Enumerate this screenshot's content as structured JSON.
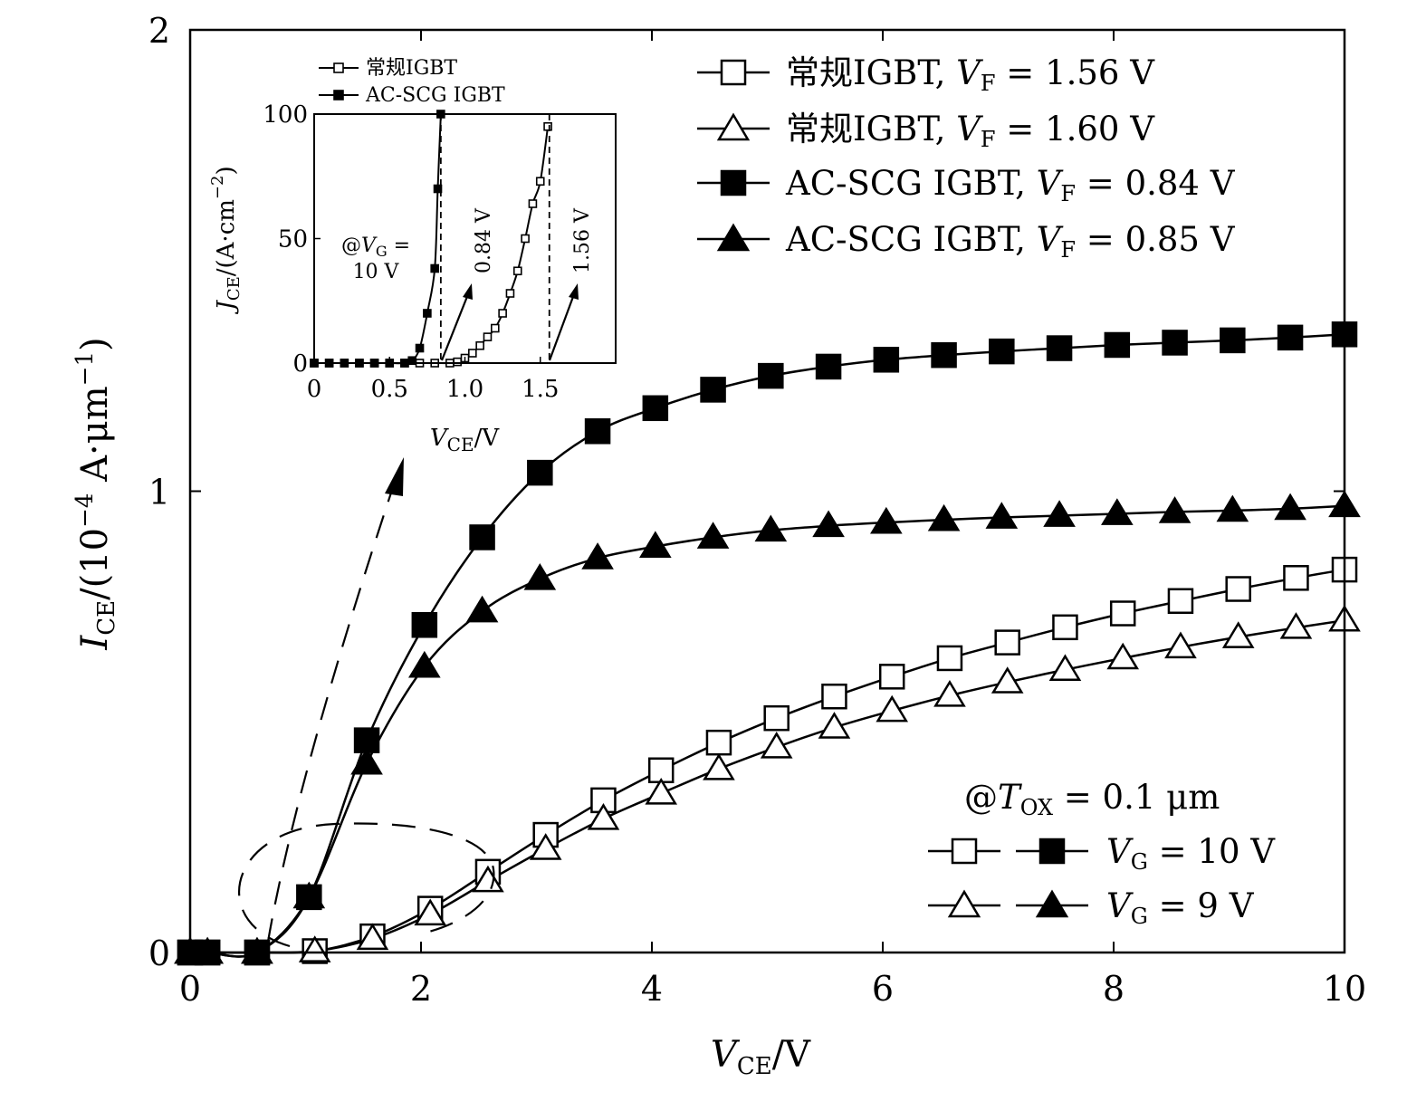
{
  "chart_data": [
    {
      "type": "line",
      "title": "",
      "xlabel": "V_CE/V",
      "ylabel": "I_CE/(10^-4 A·μm^-1)",
      "xlabel_parts": {
        "var": "V",
        "sub": "CE",
        "rest": "/V"
      },
      "ylabel_parts": {
        "var": "I",
        "sub": "CE",
        "rest": "/(10",
        "sup": "−4",
        "rest2": " A·μm",
        "sup2": "−1",
        "rest3": ")"
      },
      "xlim": [
        0,
        10
      ],
      "ylim": [
        0,
        2
      ],
      "xticks": [
        0,
        2,
        4,
        6,
        8,
        10
      ],
      "yticks": [
        0,
        1,
        2
      ],
      "grid": false,
      "legend_position": "top-right",
      "series": [
        {
          "name": "常规IGBT, V_F = 1.56 V",
          "label_prefix": "常规IGBT, ",
          "vf_value": "1.56 V",
          "marker": "square-open",
          "x": [
            0.0,
            0.15,
            0.58,
            1.08,
            1.58,
            2.08,
            2.58,
            3.08,
            3.58,
            4.08,
            4.58,
            5.08,
            5.58,
            6.08,
            6.58,
            7.08,
            7.58,
            8.08,
            8.58,
            9.08,
            9.58,
            10.0
          ],
          "y": [
            0.0,
            0.0,
            0.0,
            0.003,
            0.035,
            0.095,
            0.175,
            0.255,
            0.33,
            0.395,
            0.455,
            0.508,
            0.555,
            0.598,
            0.638,
            0.672,
            0.705,
            0.735,
            0.762,
            0.788,
            0.812,
            0.83
          ]
        },
        {
          "name": "常规IGBT, V_F = 1.60 V",
          "label_prefix": "常规IGBT, ",
          "vf_value": "1.60 V",
          "marker": "triangle-open",
          "x": [
            0.0,
            0.15,
            0.58,
            1.08,
            1.58,
            2.08,
            2.58,
            3.08,
            3.58,
            4.08,
            4.58,
            5.08,
            5.58,
            6.08,
            6.58,
            7.08,
            7.58,
            8.08,
            8.58,
            9.08,
            9.58,
            10.0
          ],
          "y": [
            0.0,
            0.0,
            0.0,
            0.003,
            0.03,
            0.083,
            0.155,
            0.225,
            0.29,
            0.345,
            0.398,
            0.445,
            0.488,
            0.524,
            0.557,
            0.586,
            0.613,
            0.638,
            0.662,
            0.684,
            0.704,
            0.72
          ]
        },
        {
          "name": "AC-SCG IGBT, V_F = 0.84 V",
          "label_prefix": "AC-SCG IGBT, ",
          "vf_value": "0.84 V",
          "marker": "square-filled",
          "x": [
            0.0,
            0.15,
            0.58,
            1.03,
            1.53,
            2.03,
            2.53,
            3.03,
            3.53,
            4.03,
            4.53,
            5.03,
            5.53,
            6.03,
            6.53,
            7.03,
            7.53,
            8.03,
            8.53,
            9.03,
            9.53,
            10.0
          ],
          "y": [
            0.0,
            0.0,
            0.0,
            0.12,
            0.46,
            0.71,
            0.9,
            1.04,
            1.13,
            1.18,
            1.22,
            1.25,
            1.27,
            1.285,
            1.295,
            1.303,
            1.31,
            1.317,
            1.322,
            1.327,
            1.333,
            1.34
          ]
        },
        {
          "name": "AC-SCG IGBT, V_F = 0.85 V",
          "label_prefix": "AC-SCG IGBT, ",
          "vf_value": "0.85 V",
          "marker": "triangle-filled",
          "x": [
            0.0,
            0.15,
            0.58,
            1.03,
            1.53,
            2.03,
            2.53,
            3.03,
            3.53,
            4.03,
            4.53,
            5.03,
            5.53,
            6.03,
            6.53,
            7.03,
            7.53,
            8.03,
            8.53,
            9.03,
            9.53,
            10.0
          ],
          "y": [
            0.0,
            0.0,
            0.0,
            0.12,
            0.41,
            0.62,
            0.74,
            0.81,
            0.855,
            0.88,
            0.9,
            0.915,
            0.925,
            0.932,
            0.938,
            0.943,
            0.947,
            0.951,
            0.955,
            0.958,
            0.962,
            0.968
          ]
        }
      ],
      "annotations": {
        "tox_prefix": "@",
        "tox_var": "T",
        "tox_sub": "OX",
        "tox_value": " = 0.1 μm",
        "vg1_var": "V",
        "vg1_sub": "G",
        "vg1_value": " = 10 V",
        "vg2_var": "V",
        "vg2_sub": "G",
        "vg2_value": " = 9 V"
      }
    },
    {
      "type": "line",
      "title": "inset",
      "xlabel": "V_CE/V",
      "ylabel": "J_CE/(A·cm^-2)",
      "xlabel_parts": {
        "var": "V",
        "sub": "CE",
        "rest": "/V"
      },
      "ylabel_parts": {
        "var": "J",
        "sub": "CE",
        "rest": "/(A·cm",
        "sup": "−2",
        "rest2": ")"
      },
      "xlim": [
        0,
        2
      ],
      "ylim": [
        0,
        100
      ],
      "xticks": [
        0,
        0.5,
        1.0,
        1.5
      ],
      "xtick_labels": [
        "0",
        "0.5",
        "1.0",
        "1.5"
      ],
      "yticks": [
        0,
        50,
        100
      ],
      "legend": [
        "常规IGBT",
        "AC-SCG IGBT"
      ],
      "series": [
        {
          "name": "常规IGBT",
          "marker": "square-open",
          "x": [
            0.0,
            0.1,
            0.2,
            0.3,
            0.4,
            0.5,
            0.6,
            0.7,
            0.8,
            0.9,
            0.95,
            1.0,
            1.05,
            1.1,
            1.15,
            1.2,
            1.25,
            1.3,
            1.35,
            1.4,
            1.45,
            1.5,
            1.55
          ],
          "y": [
            0,
            0,
            0,
            0,
            0,
            0,
            0,
            0,
            0,
            0,
            0.5,
            2,
            4,
            7,
            10.5,
            14,
            20,
            28,
            37,
            50,
            64,
            73,
            95
          ]
        },
        {
          "name": "AC-SCG IGBT",
          "marker": "square-filled",
          "x": [
            0.0,
            0.1,
            0.2,
            0.3,
            0.4,
            0.5,
            0.6,
            0.65,
            0.7,
            0.75,
            0.8,
            0.82,
            0.84
          ],
          "y": [
            0,
            0,
            0,
            0,
            0,
            0,
            0,
            1,
            6,
            20,
            38,
            70,
            100
          ]
        }
      ],
      "markers_vline": [
        0.84,
        1.56
      ],
      "annotations": {
        "vg_line1": "@V_G =",
        "vg_line1_prefix": "@",
        "vg_line1_var": "V",
        "vg_line1_sub": "G",
        "vg_line1_eq": " =",
        "vg_line2": "10 V",
        "vf1": "0.84 V",
        "vf2": "1.56 V"
      }
    }
  ]
}
